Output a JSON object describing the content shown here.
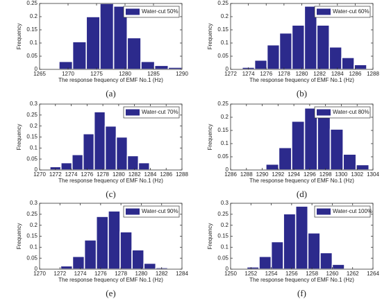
{
  "chart_data": [
    {
      "type": "histogram",
      "panel": "(a)",
      "xlabel": "The response frequency of EMF No.1 (Hz)",
      "ylabel": "Frequency",
      "series": [
        {
          "name": "Water-cut 50%",
          "color": "#2c2a8c",
          "bins": [
            1266,
            1268.4,
            1270.8,
            1273.2,
            1275.6,
            1278,
            1280.4,
            1282.8,
            1285.2,
            1287.6,
            1290
          ],
          "values": [
            0.003,
            0.03,
            0.105,
            0.2,
            0.25,
            0.24,
            0.12,
            0.03,
            0.015,
            0.008
          ]
        }
      ],
      "xlim": [
        1265,
        1290
      ],
      "xticks": [
        1265,
        1270,
        1275,
        1280,
        1285,
        1290
      ],
      "ylim": [
        0,
        0.25
      ],
      "yticks": [
        0,
        0.05,
        0.1,
        0.15,
        0.2,
        0.25
      ],
      "legend": "upper right"
    },
    {
      "type": "histogram",
      "panel": "(b)",
      "xlabel": "The response frequency of EMF No.1 (Hz)",
      "ylabel": "Frequency",
      "series": [
        {
          "name": "Water-cut  60%",
          "color": "#2c2a8c",
          "bins": [
            1273.3,
            1274.7,
            1276.1,
            1277.5,
            1278.9,
            1280.3,
            1281.7,
            1283.1,
            1284.5,
            1285.9,
            1287.3
          ],
          "values": [
            0.008,
            0.035,
            0.093,
            0.138,
            0.168,
            0.24,
            0.168,
            0.085,
            0.045,
            0.018
          ]
        }
      ],
      "xlim": [
        1272,
        1288
      ],
      "xticks": [
        1272,
        1274,
        1276,
        1278,
        1280,
        1282,
        1284,
        1286,
        1288
      ],
      "ylim": [
        0,
        0.25
      ],
      "yticks": [
        0,
        0.05,
        0.1,
        0.15,
        0.2,
        0.25
      ],
      "legend": "upper right"
    },
    {
      "type": "histogram",
      "panel": "(c)",
      "xlabel": "The response frequency of EMF No.1 (Hz)",
      "ylabel": "Frequency",
      "series": [
        {
          "name": "Water-cut  70%",
          "color": "#2c2a8c",
          "bins": [
            1271.3,
            1272.7,
            1274.1,
            1275.5,
            1276.9,
            1278.3,
            1279.7,
            1281.1,
            1282.5,
            1283.9,
            1285.3
          ],
          "values": [
            0.015,
            0.033,
            0.07,
            0.165,
            0.265,
            0.2,
            0.15,
            0.065,
            0.033,
            0.005
          ]
        }
      ],
      "xlim": [
        1270,
        1288
      ],
      "xticks": [
        1270,
        1272,
        1274,
        1276,
        1278,
        1280,
        1282,
        1284,
        1286,
        1288
      ],
      "ylim": [
        0,
        0.3
      ],
      "yticks": [
        0,
        0.05,
        0.1,
        0.15,
        0.2,
        0.25,
        0.3
      ],
      "legend": "upper right"
    },
    {
      "type": "histogram",
      "panel": "(d)",
      "xlabel": "The response frequency of EMF No.1 (Hz)",
      "ylabel": "Frequency",
      "series": [
        {
          "name": "Water-cut 80%",
          "color": "#2c2a8c",
          "bins": [
            1287.2,
            1288.83,
            1290.46,
            1292.09,
            1293.72,
            1295.35,
            1296.98,
            1298.61,
            1300.24,
            1301.87,
            1303.5
          ],
          "values": [
            0.002,
            0.003,
            0.022,
            0.085,
            0.185,
            0.235,
            0.24,
            0.155,
            0.06,
            0.02
          ]
        }
      ],
      "xlim": [
        1286,
        1304
      ],
      "xticks": [
        1286,
        1288,
        1290,
        1292,
        1294,
        1296,
        1298,
        1300,
        1302,
        1304
      ],
      "ylim": [
        0,
        0.25
      ],
      "yticks": [
        0,
        0.05,
        0.1,
        0.15,
        0.2,
        0.25
      ],
      "legend": "upper right"
    },
    {
      "type": "histogram",
      "panel": "(e)",
      "xlabel": "The response frequency of EMF No.1 (Hz)",
      "ylabel": "Frequency",
      "series": [
        {
          "name": "Water-cut 90%",
          "color": "#2c2a8c",
          "bins": [
            1270.9,
            1272.07,
            1273.24,
            1274.41,
            1275.58,
            1276.75,
            1277.92,
            1279.09,
            1280.26,
            1281.43,
            1282.6
          ],
          "values": [
            0.003,
            0.015,
            0.058,
            0.133,
            0.24,
            0.265,
            0.17,
            0.088,
            0.027,
            0.007
          ]
        }
      ],
      "xlim": [
        1270,
        1284
      ],
      "xticks": [
        1270,
        1272,
        1274,
        1276,
        1278,
        1280,
        1282,
        1284
      ],
      "ylim": [
        0,
        0.3
      ],
      "yticks": [
        0,
        0.05,
        0.1,
        0.15,
        0.2,
        0.25,
        0.3
      ],
      "legend": "upper right"
    },
    {
      "type": "histogram",
      "panel": "(f)",
      "xlabel": "The response frequency of EMF No.1 (Hz)",
      "ylabel": "Frequency",
      "series": [
        {
          "name": "Water-cut 100%",
          "color": "#2c2a8c",
          "bins": [
            1250.4,
            1251.6,
            1252.8,
            1254,
            1255.2,
            1256.4,
            1257.6,
            1258.8,
            1260,
            1261.2,
            1262.4
          ],
          "values": [
            0.002,
            0.01,
            0.058,
            0.125,
            0.252,
            0.287,
            0.165,
            0.075,
            0.022,
            0.002
          ]
        }
      ],
      "xlim": [
        1250,
        1264
      ],
      "xticks": [
        1250,
        1252,
        1254,
        1256,
        1258,
        1260,
        1262,
        1264
      ],
      "ylim": [
        0,
        0.3
      ],
      "yticks": [
        0,
        0.05,
        0.1,
        0.15,
        0.2,
        0.25,
        0.3
      ],
      "legend": "upper right"
    }
  ]
}
